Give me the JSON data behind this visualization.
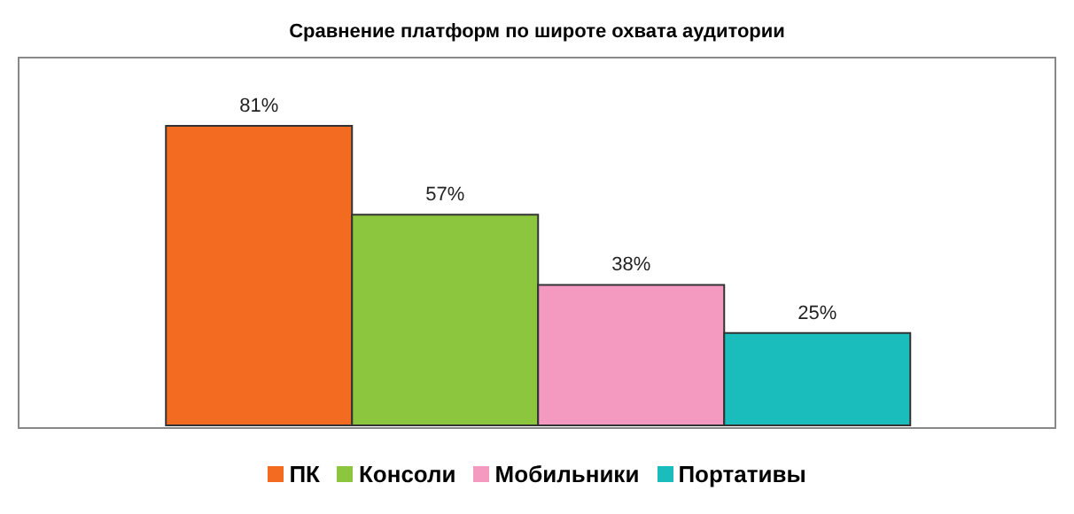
{
  "chart_data": {
    "type": "bar",
    "title": "Сравнение платформ по широте охвата аудитории",
    "categories": [
      null
    ],
    "series": [
      {
        "name": "ПК",
        "color": "#f26b21",
        "values": [
          81
        ],
        "value_labels": [
          "81%"
        ]
      },
      {
        "name": "Консоли",
        "color": "#8cc63f",
        "values": [
          57
        ],
        "value_labels": [
          "57%"
        ]
      },
      {
        "name": "Мобильники",
        "color": "#f49ac1",
        "values": [
          38
        ],
        "value_labels": [
          "38%"
        ]
      },
      {
        "name": "Портативы",
        "color": "#1bbcbc",
        "values": [
          25
        ],
        "value_labels": [
          "25%"
        ]
      }
    ],
    "legend": "bottom"
  }
}
